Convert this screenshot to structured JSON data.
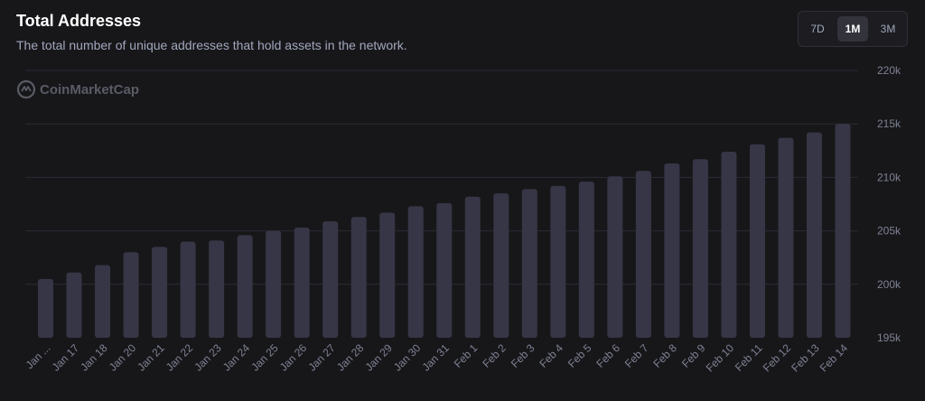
{
  "header": {
    "title": "Total Addresses",
    "subtitle": "The total number of unique addresses that hold assets in the network."
  },
  "range_selector": {
    "options": [
      "7D",
      "1M",
      "3M"
    ],
    "selected": "1M"
  },
  "watermark": {
    "text": "CoinMarketCap",
    "icon": "coinmarketcap-logo-icon"
  },
  "colors": {
    "background": "#17171a",
    "bar": "#363646",
    "grid": "#2a2a35",
    "tick_text": "#7e8192"
  },
  "chart_data": {
    "type": "bar",
    "categories": [
      "Jan ...",
      "Jan 17",
      "Jan 18",
      "Jan 20",
      "Jan 21",
      "Jan 22",
      "Jan 23",
      "Jan 24",
      "Jan 25",
      "Jan 26",
      "Jan 27",
      "Jan 28",
      "Jan 29",
      "Jan 30",
      "Jan 31",
      "Feb 1",
      "Feb 2",
      "Feb 3",
      "Feb 4",
      "Feb 5",
      "Feb 6",
      "Feb 7",
      "Feb 8",
      "Feb 9",
      "Feb 10",
      "Feb 11",
      "Feb 12",
      "Feb 13",
      "Feb 14"
    ],
    "values": [
      200500,
      201100,
      201800,
      203000,
      203500,
      204000,
      204100,
      204600,
      205000,
      205300,
      205900,
      206300,
      206700,
      207300,
      207600,
      208200,
      208500,
      208900,
      209200,
      209600,
      210100,
      210600,
      211300,
      211700,
      212400,
      213100,
      213700,
      214200,
      215000
    ],
    "ylim": [
      195000,
      220000
    ],
    "yticks": [
      195000,
      200000,
      205000,
      210000,
      215000,
      220000
    ],
    "ytick_labels": [
      "195k",
      "200k",
      "205k",
      "210k",
      "215k",
      "220k"
    ],
    "grid": true,
    "y_axis_position": "right"
  }
}
